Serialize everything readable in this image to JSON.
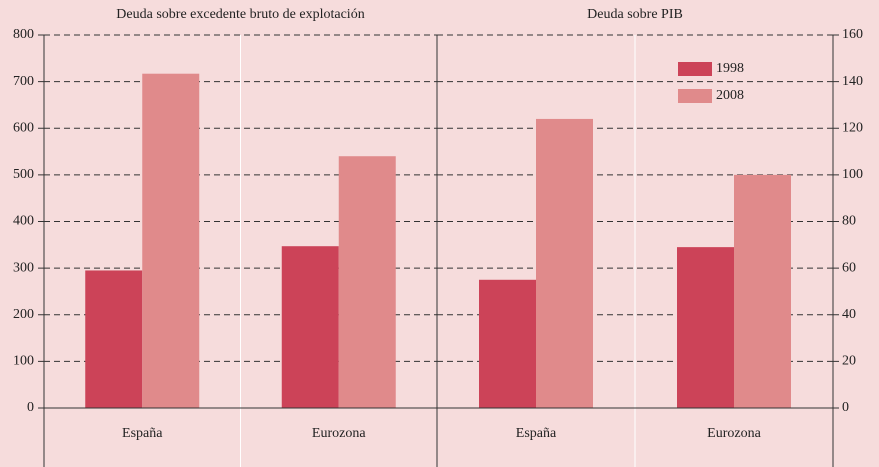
{
  "chart_data": [
    {
      "type": "bar",
      "title": "Deuda sobre excedente bruto de explotación",
      "categories": [
        "España",
        "Eurozona"
      ],
      "series": [
        {
          "color": "#cc4358",
          "values": [
            295,
            347
          ]
        },
        {
          "color": "#e08a8b",
          "values": [
            717,
            540
          ]
        }
      ],
      "ylim": [
        0,
        800
      ],
      "yticks": [
        0,
        100,
        200,
        300,
        400,
        500,
        600,
        700,
        800
      ],
      "grid": true
    },
    {
      "type": "bar",
      "title": "Deuda sobre PIB",
      "categories": [
        "España",
        "Eurozona"
      ],
      "series": [
        {
          "name": "1998",
          "color": "#cc4358",
          "values": [
            55,
            69
          ]
        },
        {
          "name": "2008",
          "color": "#e08a8b",
          "values": [
            124,
            100
          ]
        }
      ],
      "ylim": [
        0,
        160
      ],
      "yticks": [
        0,
        20,
        40,
        60,
        80,
        100,
        120,
        140,
        160
      ],
      "grid": true,
      "legend": "upper right"
    }
  ]
}
